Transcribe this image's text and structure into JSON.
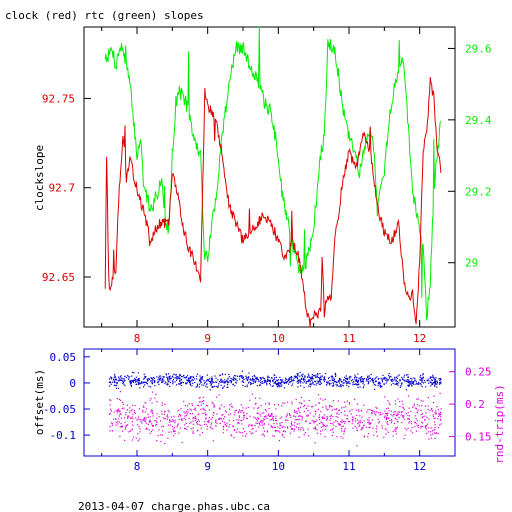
{
  "page": {
    "title": "clock (red) rtc (green) slopes",
    "footer": "2013-04-07  charge.phas.ubc.ca"
  },
  "colors": {
    "red": "#dd0000",
    "green": "#00ee00",
    "blue": "#0000cc",
    "magenta": "#dd00dd",
    "axis": "#000000",
    "bottom_axis": "#0000cc"
  },
  "chart_data": [
    {
      "type": "line",
      "x_ticks": [
        "8",
        "9",
        "10",
        "11",
        "12"
      ],
      "x_range": [
        7.25,
        12.5
      ],
      "ylabel_left": "clockslope",
      "ylim_left": [
        92.622,
        92.79
      ],
      "yticks_left": [
        "92.65",
        "92.7",
        "92.75"
      ],
      "ylim_right": [
        28.82,
        29.66
      ],
      "yticks_right": [
        "29",
        "29.2",
        "29.4",
        "29.6"
      ],
      "series": [
        {
          "name": "clock",
          "axis": "left",
          "x": [
            7.55,
            7.57,
            7.6,
            7.62,
            7.65,
            7.7,
            7.75,
            7.8,
            7.85,
            7.9,
            8.0,
            8.1,
            8.2,
            8.3,
            8.4,
            8.45,
            8.5,
            8.55,
            8.6,
            8.7,
            8.8,
            8.9,
            8.93,
            8.96,
            9.0,
            9.1,
            9.2,
            9.3,
            9.4,
            9.5,
            9.6,
            9.7,
            9.8,
            9.9,
            10.0,
            10.1,
            10.2,
            10.3,
            10.4,
            10.45,
            10.5,
            10.55,
            10.6,
            10.62,
            10.65,
            10.7,
            10.75,
            10.8,
            10.9,
            11.0,
            11.1,
            11.2,
            11.3,
            11.4,
            11.5,
            11.6,
            11.7,
            11.8,
            11.9,
            11.95,
            12.0,
            12.05,
            12.1,
            12.15,
            12.2,
            12.25,
            12.3
          ],
          "values": [
            92.645,
            92.72,
            92.65,
            92.64,
            92.65,
            92.655,
            92.7,
            92.73,
            92.705,
            92.715,
            92.7,
            92.685,
            92.67,
            92.68,
            92.68,
            92.68,
            92.71,
            92.7,
            92.69,
            92.67,
            92.66,
            92.65,
            92.7,
            92.755,
            92.745,
            92.74,
            92.72,
            92.69,
            92.68,
            92.67,
            92.675,
            92.68,
            92.685,
            92.68,
            92.67,
            92.66,
            92.67,
            92.66,
            92.63,
            92.625,
            92.63,
            92.63,
            92.63,
            92.66,
            92.63,
            92.64,
            92.64,
            92.67,
            92.7,
            92.72,
            92.71,
            92.73,
            92.72,
            92.69,
            92.675,
            92.67,
            92.68,
            92.64,
            92.64,
            92.625,
            92.66,
            92.72,
            92.73,
            92.76,
            92.75,
            92.72,
            92.71
          ]
        },
        {
          "name": "rtc",
          "axis": "right",
          "x": [
            7.55,
            7.6,
            7.65,
            7.7,
            7.75,
            7.8,
            7.85,
            7.9,
            8.0,
            8.05,
            8.1,
            8.2,
            8.3,
            8.35,
            8.4,
            8.45,
            8.5,
            8.55,
            8.6,
            8.7,
            8.8,
            8.9,
            8.95,
            9.0,
            9.05,
            9.1,
            9.2,
            9.3,
            9.4,
            9.5,
            9.6,
            9.7,
            9.8,
            9.9,
            10.0,
            10.05,
            10.1,
            10.2,
            10.3,
            10.4,
            10.5,
            10.6,
            10.65,
            10.7,
            10.8,
            10.9,
            11.0,
            11.1,
            11.15,
            11.2,
            11.3,
            11.35,
            11.4,
            11.5,
            11.6,
            11.7,
            11.75,
            11.8,
            11.9,
            12.0,
            12.05,
            12.1,
            12.15,
            12.2,
            12.25,
            12.3
          ],
          "values": [
            29.58,
            29.58,
            29.6,
            29.55,
            29.6,
            29.6,
            29.55,
            29.5,
            29.3,
            29.35,
            29.2,
            29.15,
            29.2,
            29.25,
            29.1,
            29.1,
            29.3,
            29.45,
            29.48,
            29.45,
            29.35,
            29.3,
            29.05,
            29.0,
            29.1,
            29.15,
            29.35,
            29.5,
            29.6,
            29.6,
            29.55,
            29.52,
            29.45,
            29.42,
            29.3,
            29.2,
            29.15,
            29.05,
            28.98,
            29.0,
            29.1,
            29.3,
            29.35,
            29.62,
            29.6,
            29.45,
            29.35,
            29.3,
            29.25,
            29.3,
            29.38,
            29.33,
            29.15,
            29.25,
            29.45,
            29.55,
            29.58,
            29.5,
            29.2,
            29.1,
            29.05,
            28.85,
            28.95,
            29.2,
            29.3,
            29.4
          ]
        }
      ]
    },
    {
      "type": "scatter",
      "x_ticks": [
        "8",
        "9",
        "10",
        "11",
        "12"
      ],
      "x_range": [
        7.25,
        12.5
      ],
      "ylabel_left": "offset(ms)",
      "ylim_left": [
        -0.14,
        0.065
      ],
      "yticks_left": [
        "0.05",
        "0",
        "-0.05",
        "-0.1"
      ],
      "ylabel_right": "rnd-trip(ms)",
      "ylim_right": [
        0.12,
        0.285
      ],
      "yticks_right": [
        "0.25",
        "0.2",
        "0.15"
      ],
      "series": [
        {
          "name": "offset",
          "axis": "left",
          "x": [
            7.6,
            7.9,
            8.2,
            8.5,
            8.8,
            9.1,
            9.4,
            9.7,
            10.0,
            10.3,
            10.6,
            10.9,
            11.2,
            11.5,
            11.8,
            12.1,
            12.3
          ],
          "values": [
            0.003,
            0.006,
            0.004,
            0.008,
            0.005,
            0.002,
            0.007,
            0.006,
            0.003,
            0.009,
            0.006,
            0.005,
            0.004,
            0.007,
            0.002,
            0.005,
            0.004
          ]
        },
        {
          "name": "rnd-trip",
          "axis": "right",
          "x": [
            7.6,
            7.9,
            8.2,
            8.5,
            8.8,
            9.1,
            9.4,
            9.7,
            10.0,
            10.3,
            10.6,
            10.9,
            11.2,
            11.5,
            11.8,
            12.1,
            12.3
          ],
          "values": [
            0.18,
            0.175,
            0.18,
            0.17,
            0.178,
            0.182,
            0.176,
            0.18,
            0.174,
            0.179,
            0.177,
            0.181,
            0.175,
            0.178,
            0.18,
            0.176,
            0.179
          ]
        }
      ]
    }
  ]
}
